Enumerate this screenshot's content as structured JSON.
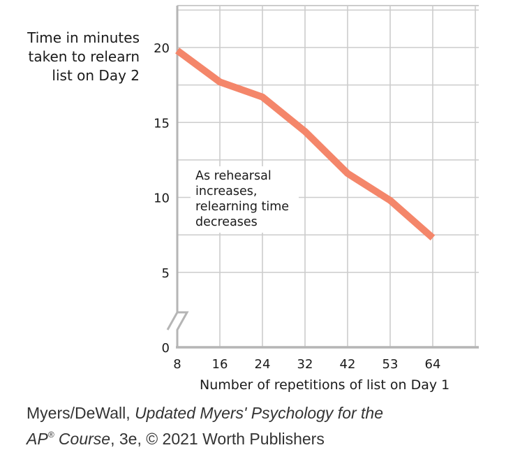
{
  "chart_data": {
    "type": "line",
    "ylabel_lines": [
      "Time in minutes",
      "taken to relearn",
      "list on Day 2"
    ],
    "xlabel": "Number of repetitions of list on Day 1",
    "categories": [
      "8",
      "16",
      "24",
      "32",
      "42",
      "53",
      "64"
    ],
    "values": [
      19.8,
      17.7,
      16.7,
      14.4,
      11.6,
      9.8,
      7.3
    ],
    "y_ticks": [
      "0",
      "5",
      "10",
      "15",
      "20"
    ],
    "ylim": [
      0,
      22
    ],
    "y_axis_break": true,
    "grid": true,
    "annotation_lines": [
      "As rehearsal",
      "increases,",
      "relearning time",
      "decreases"
    ],
    "colors": {
      "line": "#f4866a",
      "grid": "#cccccc",
      "axis": "#b5b5b5"
    }
  },
  "credit": {
    "line1_a": "Myers/DeWall, ",
    "line1_b": "Updated Myers' Psychology for the",
    "line2_a": "AP",
    "line2_sup": "®",
    "line2_b": " Course",
    "line2_c": ", 3e, © 2021 Worth Publishers"
  }
}
